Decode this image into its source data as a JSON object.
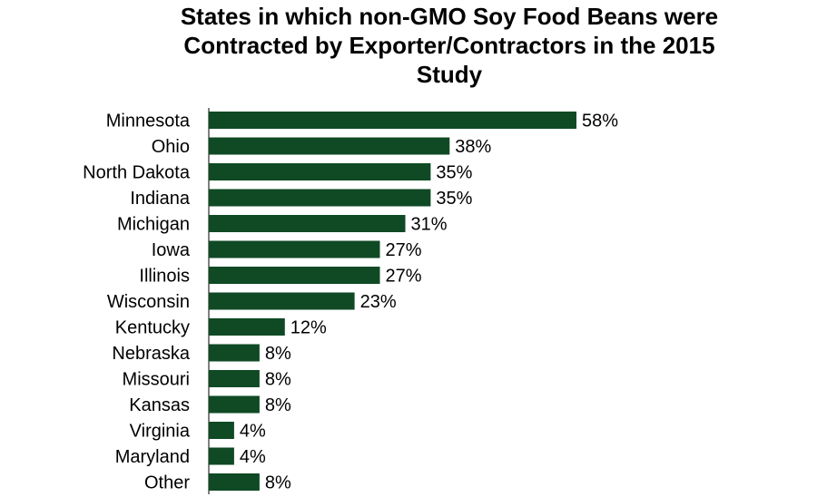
{
  "chart_data": {
    "type": "bar",
    "orientation": "horizontal",
    "title_lines": [
      "States in which non-GMO Soy Food Beans were",
      "Contracted by Exporter/Contractors in the 2015",
      "Study"
    ],
    "categories": [
      "Minnesota",
      "Ohio",
      "North Dakota",
      "Indiana",
      "Michigan",
      "Iowa",
      "Illinois",
      "Wisconsin",
      "Kentucky",
      "Nebraska",
      "Missouri",
      "Kansas",
      "Virginia",
      "Maryland",
      "Other"
    ],
    "values": [
      58,
      38,
      35,
      35,
      31,
      27,
      27,
      23,
      12,
      8,
      8,
      8,
      4,
      4,
      8
    ],
    "value_labels": [
      "58%",
      "38%",
      "35%",
      "35%",
      "31%",
      "27%",
      "27%",
      "23%",
      "12%",
      "8%",
      "8%",
      "8%",
      "4%",
      "4%",
      "8%"
    ],
    "unit": "%",
    "xlim": [
      0,
      60
    ],
    "bar_color": "#0f4a24",
    "grid": false,
    "legend": "none"
  }
}
